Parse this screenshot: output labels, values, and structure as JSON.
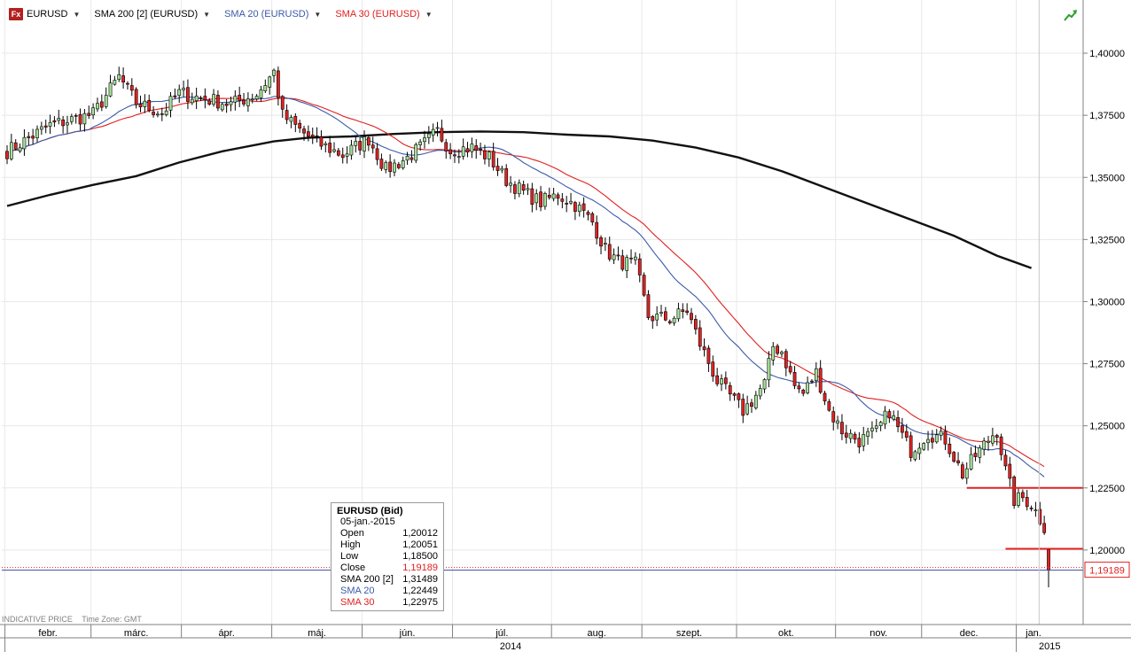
{
  "legend": {
    "fx_badge": "Fx",
    "items": [
      {
        "label": "EURUSD",
        "color": "#000000"
      },
      {
        "label": "SMA 200 [2] (EURUSD)",
        "color": "#000000"
      },
      {
        "label": "SMA 20 (EURUSD)",
        "color": "#3a5aa8"
      },
      {
        "label": "SMA 30 (EURUSD)",
        "color": "#e02020"
      }
    ]
  },
  "tooltip": {
    "title": "EURUSD (Bid)",
    "date": "05-jan.-2015",
    "rows": [
      {
        "label": "Open",
        "value": "1,20012",
        "color": "#000000"
      },
      {
        "label": "High",
        "value": "1,20051",
        "color": "#000000"
      },
      {
        "label": "Low",
        "value": "1,18500",
        "color": "#000000"
      },
      {
        "label": "Close",
        "value": "1,19189",
        "color": "#e02020"
      },
      {
        "label": "SMA 200 [2]",
        "value": "1,31489",
        "color": "#000000"
      },
      {
        "label": "SMA 20",
        "value": "1,22449",
        "color": "#3a5aa8"
      },
      {
        "label": "SMA 30",
        "value": "1,22975",
        "color": "#e02020"
      }
    ]
  },
  "footer": {
    "indicative": "INDICATIVE PRICE",
    "timezone": "Time Zone: GMT"
  },
  "chart_data": {
    "type": "candlestick",
    "symbol": "EURUSD",
    "ylim": [
      1.17,
      1.41
    ],
    "y_ticks": [
      {
        "v": 1.4,
        "label": "1,40000"
      },
      {
        "v": 1.375,
        "label": "1,37500"
      },
      {
        "v": 1.35,
        "label": "1,35000"
      },
      {
        "v": 1.325,
        "label": "1,32500"
      },
      {
        "v": 1.3,
        "label": "1,30000"
      },
      {
        "v": 1.275,
        "label": "1,27500"
      },
      {
        "v": 1.25,
        "label": "1,25000"
      },
      {
        "v": 1.225,
        "label": "1,22500"
      },
      {
        "v": 1.2,
        "label": "1,20000"
      }
    ],
    "last_price": {
      "value": 1.19189,
      "label": "1,19189"
    },
    "months": [
      {
        "label": "febr.",
        "start": 0,
        "end": 20
      },
      {
        "label": "márc.",
        "start": 20,
        "end": 41
      },
      {
        "label": "ápr.",
        "start": 41,
        "end": 62
      },
      {
        "label": "máj.",
        "start": 62,
        "end": 83
      },
      {
        "label": "jún.",
        "start": 83,
        "end": 104
      },
      {
        "label": "júl.",
        "start": 104,
        "end": 127
      },
      {
        "label": "aug.",
        "start": 127,
        "end": 148
      },
      {
        "label": "szept.",
        "start": 148,
        "end": 170
      },
      {
        "label": "okt.",
        "start": 170,
        "end": 193
      },
      {
        "label": "nov.",
        "start": 193,
        "end": 213
      },
      {
        "label": "dec.",
        "start": 213,
        "end": 235
      },
      {
        "label": "jan.",
        "start": 235,
        "end": 243
      }
    ],
    "years": [
      {
        "label": "2014",
        "start": 0,
        "end": 235
      },
      {
        "label": "2015",
        "start": 235,
        "end": 243
      }
    ],
    "close_anchors": [
      [
        0,
        1.3605
      ],
      [
        10,
        1.371
      ],
      [
        20,
        1.3755
      ],
      [
        26,
        1.3905
      ],
      [
        30,
        1.38
      ],
      [
        36,
        1.376
      ],
      [
        40,
        1.384
      ],
      [
        45,
        1.382
      ],
      [
        52,
        1.3795
      ],
      [
        58,
        1.3835
      ],
      [
        62,
        1.3925
      ],
      [
        64,
        1.375
      ],
      [
        68,
        1.369
      ],
      [
        72,
        1.364
      ],
      [
        78,
        1.359
      ],
      [
        84,
        1.3655
      ],
      [
        88,
        1.353
      ],
      [
        93,
        1.358
      ],
      [
        96,
        1.362
      ],
      [
        100,
        1.3685
      ],
      [
        103,
        1.361
      ],
      [
        108,
        1.362
      ],
      [
        112,
        1.358
      ],
      [
        116,
        1.349
      ],
      [
        120,
        1.344
      ],
      [
        124,
        1.34
      ],
      [
        128,
        1.343
      ],
      [
        132,
        1.339
      ],
      [
        136,
        1.332
      ],
      [
        139,
        1.321
      ],
      [
        142,
        1.316
      ],
      [
        146,
        1.315
      ],
      [
        149,
        1.294
      ],
      [
        154,
        1.293
      ],
      [
        158,
        1.2965
      ],
      [
        161,
        1.283
      ],
      [
        165,
        1.268
      ],
      [
        168,
        1.262
      ],
      [
        171,
        1.256
      ],
      [
        173,
        1.26
      ],
      [
        176,
        1.267
      ],
      [
        178,
        1.282
      ],
      [
        180,
        1.28
      ],
      [
        183,
        1.266
      ],
      [
        185,
        1.263
      ],
      [
        188,
        1.2715
      ],
      [
        191,
        1.256
      ],
      [
        194,
        1.248
      ],
      [
        198,
        1.244
      ],
      [
        202,
        1.2475
      ],
      [
        205,
        1.256
      ],
      [
        207,
        1.249
      ],
      [
        210,
        1.24
      ],
      [
        214,
        1.247
      ],
      [
        218,
        1.2445
      ],
      [
        222,
        1.2305
      ],
      [
        225,
        1.238
      ],
      [
        229,
        1.2465
      ],
      [
        230,
        1.248
      ],
      [
        232,
        1.232
      ],
      [
        234,
        1.22
      ],
      [
        236,
        1.221
      ],
      [
        238,
        1.2185
      ],
      [
        240,
        1.2125
      ],
      [
        241,
        1.2095
      ],
      [
        242,
        1.1919
      ]
    ],
    "last_candle": {
      "open": 1.20012,
      "high": 1.20051,
      "low": 1.185,
      "close": 1.19189
    },
    "sma200": [
      [
        0,
        1.3385
      ],
      [
        10,
        1.343
      ],
      [
        20,
        1.347
      ],
      [
        30,
        1.3505
      ],
      [
        40,
        1.356
      ],
      [
        50,
        1.3605
      ],
      [
        62,
        1.3645
      ],
      [
        70,
        1.366
      ],
      [
        80,
        1.3665
      ],
      [
        90,
        1.3675
      ],
      [
        100,
        1.3682
      ],
      [
        110,
        1.3685
      ],
      [
        120,
        1.3682
      ],
      [
        130,
        1.3672
      ],
      [
        140,
        1.3665
      ],
      [
        150,
        1.3648
      ],
      [
        160,
        1.362
      ],
      [
        170,
        1.358
      ],
      [
        180,
        1.3525
      ],
      [
        190,
        1.346
      ],
      [
        200,
        1.3395
      ],
      [
        210,
        1.333
      ],
      [
        220,
        1.3265
      ],
      [
        230,
        1.3185
      ],
      [
        238,
        1.3135
      ]
    ],
    "horizontal_lines": [
      {
        "value": 1.225,
        "from": 223,
        "to": 243,
        "color": "#e02020"
      },
      {
        "value": 1.2005,
        "from": 232,
        "to": 243,
        "color": "#e02020"
      }
    ]
  }
}
